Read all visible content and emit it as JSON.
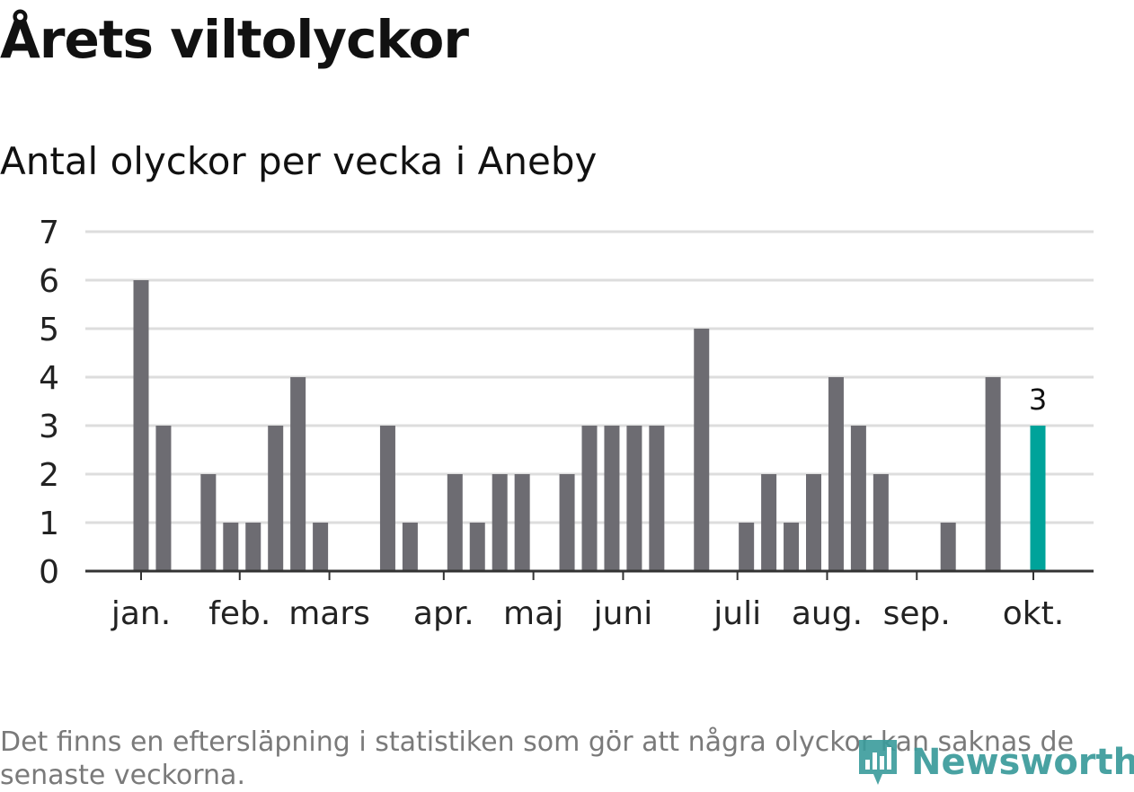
{
  "title": "Årets viltolyckor",
  "subtitle": "Antal olyckor per vecka i Aneby",
  "footnote": "Det finns en eftersläpning i statistiken som gör att några olyckor kan saknas de senaste veckorna.",
  "logo_text": "Newsworthy",
  "colors": {
    "bar": "#6d6c72",
    "highlight": "#00a39a",
    "grid": "#dddddd",
    "axis": "#333333",
    "logo": "#3a9b9b",
    "footnote": "#7a7a7a"
  },
  "chart_data": {
    "type": "bar",
    "title": "Antal olyckor per vecka i Aneby",
    "xlabel": "",
    "ylabel": "",
    "ylim": [
      0,
      7
    ],
    "yticks": [
      0,
      1,
      2,
      3,
      4,
      5,
      6,
      7
    ],
    "grid": true,
    "weeks": [
      1,
      2,
      3,
      4,
      5,
      6,
      7,
      8,
      9,
      10,
      11,
      12,
      13,
      14,
      15,
      16,
      17,
      18,
      19,
      20,
      21,
      22,
      23,
      24,
      25,
      26,
      27,
      28,
      29,
      30,
      31,
      32,
      33,
      34,
      35,
      36,
      37,
      38,
      39,
      40,
      41,
      42,
      43
    ],
    "values": [
      6,
      3,
      0,
      2,
      1,
      1,
      3,
      4,
      1,
      0,
      0,
      3,
      1,
      0,
      2,
      1,
      2,
      2,
      0,
      2,
      3,
      3,
      3,
      3,
      0,
      5,
      0,
      1,
      2,
      1,
      2,
      4,
      3,
      2,
      0,
      0,
      1,
      0,
      4,
      0,
      3,
      0,
      0
    ],
    "month_ticks": [
      {
        "label": "jan.",
        "week": 1.0
      },
      {
        "label": "feb.",
        "week": 5.4
      },
      {
        "label": "mars",
        "week": 9.4
      },
      {
        "label": "apr.",
        "week": 14.5
      },
      {
        "label": "maj",
        "week": 18.5
      },
      {
        "label": "juni",
        "week": 22.5
      },
      {
        "label": "juli",
        "week": 27.6
      },
      {
        "label": "aug.",
        "week": 31.6
      },
      {
        "label": "sep.",
        "week": 35.6
      },
      {
        "label": "okt.",
        "week": 40.8
      }
    ],
    "highlight_week": 41,
    "highlight_label": "3"
  }
}
